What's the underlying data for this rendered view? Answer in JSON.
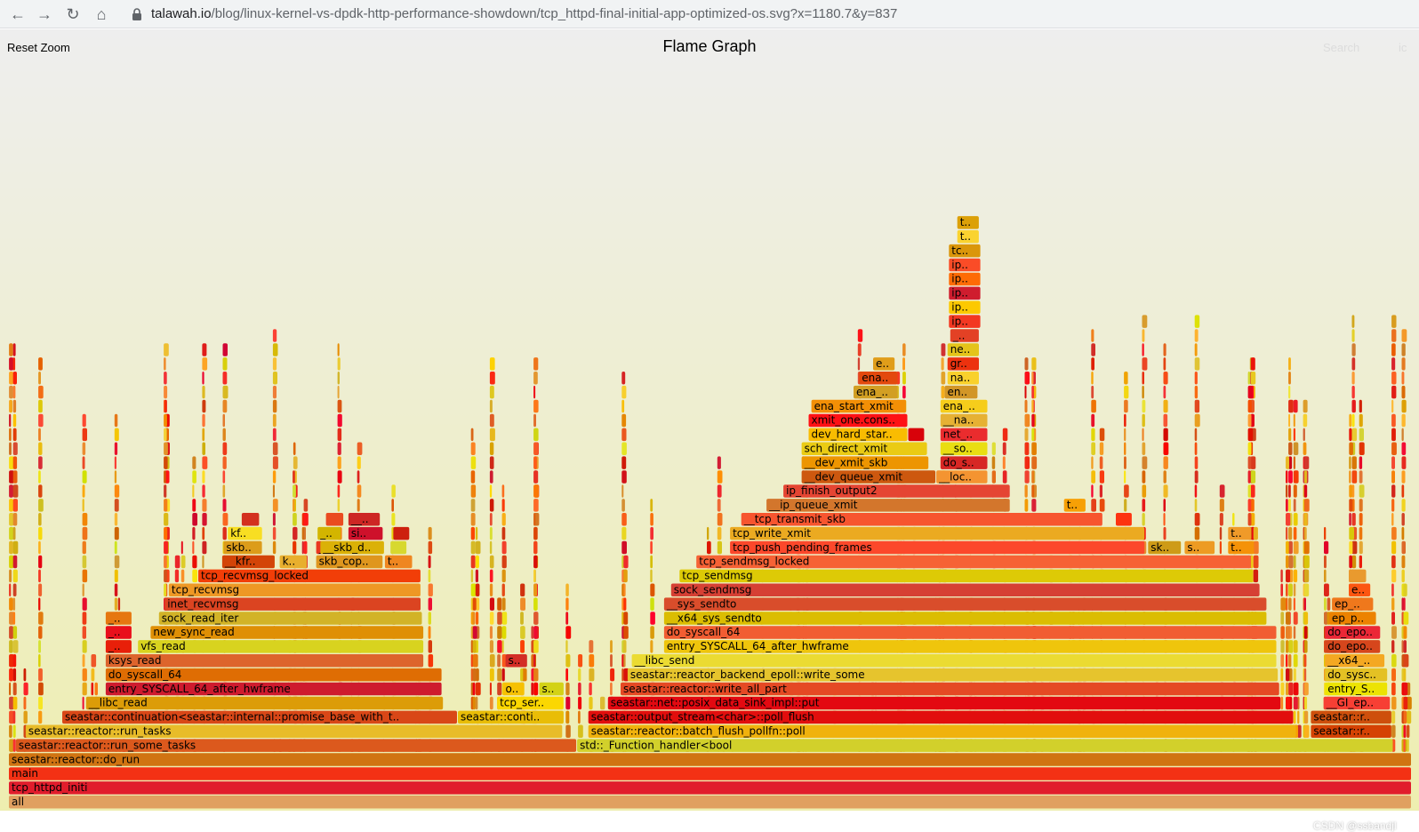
{
  "browser": {
    "url_host": "talawah.io",
    "url_path": "/blog/linux-kernel-vs-dpdk-http-performance-showdown/tcp_httpd-final-initial-app-optimized-os.svg?x=1180.7&y=837",
    "back_icon": "arrow-left-icon",
    "forward_icon": "arrow-right-icon",
    "reload_icon": "reload-icon",
    "home_icon": "home-icon",
    "lock_icon": "lock-icon"
  },
  "toolbar": {
    "reset_zoom": "Reset Zoom",
    "title": "Flame Graph",
    "search": "Search",
    "ic": "ic"
  },
  "watermark": "CSDN @ssbandjl",
  "colors": {
    "bg_top": "#eeeeee",
    "bg_bottom": "#eeeeb0",
    "root_frame": "#e0a060"
  },
  "frames": [
    {
      "label": "all",
      "depth": 0,
      "start": 0.0,
      "width": 1.0
    },
    {
      "label": "tcp_httpd_initi",
      "depth": 1,
      "start": 0.0,
      "width": 1.0
    },
    {
      "label": "main",
      "depth": 2,
      "start": 0.0,
      "width": 1.0
    },
    {
      "label": "seastar::reactor::do_run",
      "depth": 3,
      "start": 0.0,
      "width": 1.0
    },
    {
      "label": "seastar::reactor::run_some_tasks",
      "depth": 4,
      "start": 0.005,
      "width": 0.4
    },
    {
      "label": "std::_Function_handler<bool",
      "depth": 4,
      "start": 0.405,
      "width": 0.582
    },
    {
      "label": "seastar::reactor::run_tasks",
      "depth": 5,
      "start": 0.012,
      "width": 0.383
    },
    {
      "label": "seastar::reactor::batch_flush_pollfn::poll",
      "depth": 5,
      "start": 0.413,
      "width": 0.505
    },
    {
      "label": "seastar::rea..",
      "depth": 5,
      "start": 0.928,
      "width": 0.058
    },
    {
      "label": "seastar::continuation<seastar::internal::promise_base_with_type<sea..",
      "depth": 6,
      "start": 0.038,
      "width": 0.282
    },
    {
      "label": "seastar::continua..",
      "depth": 6,
      "start": 0.32,
      "width": 0.076
    },
    {
      "label": "seastar::output_stream<char>::poll_flush",
      "depth": 6,
      "start": 0.413,
      "width": 0.503
    },
    {
      "label": "seastar::rea..",
      "depth": 6,
      "start": 0.928,
      "width": 0.058
    },
    {
      "label": "__libc_read",
      "depth": 7,
      "start": 0.055,
      "width": 0.255
    },
    {
      "label": "tcp_serve..",
      "depth": 7,
      "start": 0.348,
      "width": 0.048
    },
    {
      "label": "seastar::net::posix_data_sink_impl::put",
      "depth": 7,
      "start": 0.427,
      "width": 0.48
    },
    {
      "label": "__GI_epo..",
      "depth": 7,
      "start": 0.937,
      "width": 0.048
    },
    {
      "label": "entry_SYSCALL_64_after_hwframe",
      "depth": 8,
      "start": 0.069,
      "width": 0.24
    },
    {
      "label": "o..",
      "depth": 8,
      "start": 0.352,
      "width": 0.016
    },
    {
      "label": "se..",
      "depth": 8,
      "start": 0.378,
      "width": 0.018
    },
    {
      "label": "seastar::reactor::write_all_part",
      "depth": 8,
      "start": 0.436,
      "width": 0.47
    },
    {
      "label": "entry_S..",
      "depth": 8,
      "start": 0.938,
      "width": 0.045
    },
    {
      "label": "do_syscall_64",
      "depth": 9,
      "start": 0.069,
      "width": 0.24
    },
    {
      "label": "seastar::reactor_backend_epoll::write_some",
      "depth": 9,
      "start": 0.441,
      "width": 0.464
    },
    {
      "label": "do_sysca..",
      "depth": 9,
      "start": 0.938,
      "width": 0.045
    },
    {
      "label": "ksys_read",
      "depth": 10,
      "start": 0.069,
      "width": 0.227
    },
    {
      "label": "s..",
      "depth": 10,
      "start": 0.354,
      "width": 0.016
    },
    {
      "label": "__libc_send",
      "depth": 10,
      "start": 0.444,
      "width": 0.46
    },
    {
      "label": "__x64_..",
      "depth": 10,
      "start": 0.938,
      "width": 0.043
    },
    {
      "label": "__..",
      "depth": 11,
      "start": 0.069,
      "width": 0.019
    },
    {
      "label": "vfs_read",
      "depth": 11,
      "start": 0.092,
      "width": 0.204
    },
    {
      "label": "entry_SYSCALL_64_after_hwframe",
      "depth": 11,
      "start": 0.467,
      "width": 0.437
    },
    {
      "label": "do_epol..",
      "depth": 11,
      "start": 0.938,
      "width": 0.04
    },
    {
      "label": "__..",
      "depth": 12,
      "start": 0.069,
      "width": 0.019
    },
    {
      "label": "new_sync_read",
      "depth": 12,
      "start": 0.101,
      "width": 0.195
    },
    {
      "label": "do_syscall_64",
      "depth": 12,
      "start": 0.467,
      "width": 0.437
    },
    {
      "label": "do_epol..",
      "depth": 12,
      "start": 0.938,
      "width": 0.04
    },
    {
      "label": "__..",
      "depth": 13,
      "start": 0.069,
      "width": 0.019
    },
    {
      "label": "sock_read_iter",
      "depth": 13,
      "start": 0.107,
      "width": 0.188
    },
    {
      "label": "__x64_sys_sendto",
      "depth": 13,
      "start": 0.467,
      "width": 0.43
    },
    {
      "label": "ep_poll",
      "depth": 13,
      "start": 0.941,
      "width": 0.034
    },
    {
      "label": "inet_recvmsg",
      "depth": 14,
      "start": 0.111,
      "width": 0.183
    },
    {
      "label": "__sys_sendto",
      "depth": 14,
      "start": 0.467,
      "width": 0.43
    },
    {
      "label": "ep_s..",
      "depth": 14,
      "start": 0.943,
      "width": 0.03
    },
    {
      "label": "tcp_recvmsg",
      "depth": 15,
      "start": 0.114,
      "width": 0.18
    },
    {
      "label": "sock_sendmsg",
      "depth": 15,
      "start": 0.472,
      "width": 0.42
    },
    {
      "label": "ep..",
      "depth": 15,
      "start": 0.955,
      "width": 0.016
    },
    {
      "label": "tcp_recvmsg_locked",
      "depth": 16,
      "start": 0.135,
      "width": 0.159
    },
    {
      "label": "tcp_sendmsg",
      "depth": 16,
      "start": 0.478,
      "width": 0.409
    },
    {
      "label": "s..",
      "depth": 16,
      "start": 0.955,
      "width": 0.013
    },
    {
      "label": "__kfree..",
      "depth": 17,
      "start": 0.152,
      "width": 0.038
    },
    {
      "label": "km..",
      "depth": 17,
      "start": 0.193,
      "width": 0.02
    },
    {
      "label": "skb_copy..",
      "depth": 17,
      "start": 0.219,
      "width": 0.048
    },
    {
      "label": "tc..",
      "depth": 17,
      "start": 0.268,
      "width": 0.02
    },
    {
      "label": "tcp_sendmsg_locked",
      "depth": 17,
      "start": 0.49,
      "width": 0.396
    },
    {
      "label": "skb..",
      "depth": 18,
      "start": 0.153,
      "width": 0.028
    },
    {
      "label": "_c..",
      "depth": 18,
      "start": 0.219,
      "width": 0.016
    },
    {
      "label": "__skb_da..",
      "depth": 18,
      "start": 0.222,
      "width": 0.046
    },
    {
      "label": "t..",
      "depth": 18,
      "start": 0.272,
      "width": 0.012
    },
    {
      "label": "tcp_push_pending_frames",
      "depth": 18,
      "start": 0.514,
      "width": 0.296
    },
    {
      "label": "sk..",
      "depth": 18,
      "start": 0.812,
      "width": 0.024
    },
    {
      "label": "sk..",
      "depth": 18,
      "start": 0.838,
      "width": 0.022
    },
    {
      "label": "tc..",
      "depth": 18,
      "start": 0.869,
      "width": 0.019
    },
    {
      "label": "kfree",
      "depth": 19,
      "start": 0.156,
      "width": 0.025
    },
    {
      "label": "_c..",
      "depth": 19,
      "start": 0.22,
      "width": 0.017
    },
    {
      "label": "sim..",
      "depth": 19,
      "start": 0.242,
      "width": 0.025
    },
    {
      "label": "k..",
      "depth": 19,
      "start": 0.274,
      "width": 0.012
    },
    {
      "label": "tcp_write_xmit",
      "depth": 19,
      "start": 0.514,
      "width": 0.296
    },
    {
      "label": "tc..",
      "depth": 19,
      "start": 0.869,
      "width": 0.017
    },
    {
      "label": "s..",
      "depth": 20,
      "start": 0.166,
      "width": 0.013
    },
    {
      "label": "c..",
      "depth": 20,
      "start": 0.226,
      "width": 0.013
    },
    {
      "label": "__c..",
      "depth": 20,
      "start": 0.242,
      "width": 0.023
    },
    {
      "label": "__tcp_transmit_skb",
      "depth": 20,
      "start": 0.522,
      "width": 0.258
    },
    {
      "label": "t..",
      "depth": 20,
      "start": 0.789,
      "width": 0.012
    },
    {
      "label": "__ip_queue_xmit",
      "depth": 21,
      "start": 0.54,
      "width": 0.174
    },
    {
      "label": "t..",
      "depth": 21,
      "start": 0.752,
      "width": 0.016
    },
    {
      "label": "ip_finish_output2",
      "depth": 22,
      "start": 0.552,
      "width": 0.162
    },
    {
      "label": "__dev_queue_xmit",
      "depth": 23,
      "start": 0.565,
      "width": 0.096
    },
    {
      "label": "__local..",
      "depth": 23,
      "start": 0.661,
      "width": 0.037
    },
    {
      "label": "__dev_xmit_skb",
      "depth": 24,
      "start": 0.565,
      "width": 0.091
    },
    {
      "label": "do_sof..",
      "depth": 24,
      "start": 0.664,
      "width": 0.034
    },
    {
      "label": "sch_direct_xmit",
      "depth": 25,
      "start": 0.565,
      "width": 0.09
    },
    {
      "label": "__soft..",
      "depth": 25,
      "start": 0.664,
      "width": 0.034
    },
    {
      "label": "dev_hard_start..",
      "depth": 26,
      "start": 0.57,
      "width": 0.071
    },
    {
      "label": "v..",
      "depth": 26,
      "start": 0.641,
      "width": 0.012
    },
    {
      "label": "net_r..",
      "depth": 26,
      "start": 0.664,
      "width": 0.034
    },
    {
      "label": "xmit_one.const..",
      "depth": 27,
      "start": 0.57,
      "width": 0.071
    },
    {
      "label": "__nap..",
      "depth": 27,
      "start": 0.664,
      "width": 0.034
    },
    {
      "label": "ena_start_xmit",
      "depth": 28,
      "start": 0.572,
      "width": 0.068
    },
    {
      "label": "ena_i..",
      "depth": 28,
      "start": 0.664,
      "width": 0.034
    },
    {
      "label": "ena_x..",
      "depth": 29,
      "start": 0.602,
      "width": 0.032
    },
    {
      "label": "ena_..",
      "depth": 29,
      "start": 0.667,
      "width": 0.024
    },
    {
      "label": "ena_..",
      "depth": 30,
      "start": 0.606,
      "width": 0.028
    },
    {
      "label": "nap..",
      "depth": 30,
      "start": 0.669,
      "width": 0.023
    },
    {
      "label": "e..",
      "depth": 31,
      "start": 0.616,
      "width": 0.016
    },
    {
      "label": "gro..",
      "depth": 31,
      "start": 0.669,
      "width": 0.023
    },
    {
      "label": "neti..",
      "depth": 32,
      "start": 0.669,
      "width": 0.023
    },
    {
      "label": "__n..",
      "depth": 33,
      "start": 0.671,
      "width": 0.021
    },
    {
      "label": "ip_li..",
      "depth": 34,
      "start": 0.67,
      "width": 0.023
    },
    {
      "label": "ip_..",
      "depth": 35,
      "start": 0.67,
      "width": 0.023
    },
    {
      "label": "ip_..",
      "depth": 36,
      "start": 0.67,
      "width": 0.023
    },
    {
      "label": "ip_l..",
      "depth": 37,
      "start": 0.67,
      "width": 0.023
    },
    {
      "label": "ip_..",
      "depth": 38,
      "start": 0.67,
      "width": 0.023
    },
    {
      "label": "tcp..",
      "depth": 39,
      "start": 0.67,
      "width": 0.023
    },
    {
      "label": "tc..",
      "depth": 40,
      "start": 0.676,
      "width": 0.016
    },
    {
      "label": "tc..",
      "depth": 41,
      "start": 0.676,
      "width": 0.016
    }
  ]
}
